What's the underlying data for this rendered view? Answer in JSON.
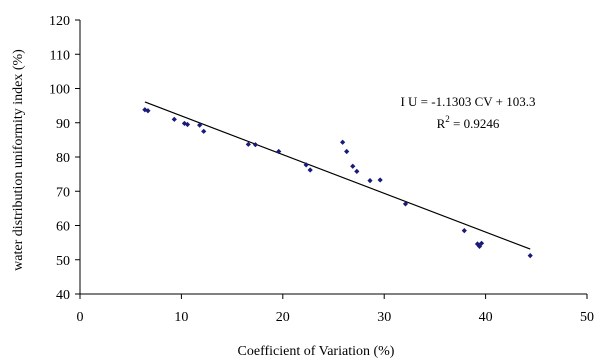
{
  "chart_data": {
    "type": "scatter",
    "title": "",
    "xlabel": "Coefficient of Variation (%)",
    "ylabel": "water distribution uniformity index (%)",
    "xlim": [
      0,
      50
    ],
    "ylim": [
      40,
      120
    ],
    "x_ticks": [
      "0",
      "10",
      "20",
      "30",
      "40",
      "50"
    ],
    "y_ticks": [
      "40",
      "50",
      "60",
      "70",
      "80",
      "90",
      "100",
      "110",
      "120"
    ],
    "grid": false,
    "legend": "none",
    "series": [
      {
        "marker_color": "#1a1a7a",
        "points": [
          {
            "x": 6.4,
            "y": 93.8
          },
          {
            "x": 6.7,
            "y": 93.5
          },
          {
            "x": 9.3,
            "y": 91.0
          },
          {
            "x": 10.3,
            "y": 89.8
          },
          {
            "x": 10.6,
            "y": 89.5
          },
          {
            "x": 11.8,
            "y": 89.3
          },
          {
            "x": 12.2,
            "y": 87.5
          },
          {
            "x": 16.6,
            "y": 83.7
          },
          {
            "x": 17.3,
            "y": 83.6
          },
          {
            "x": 19.6,
            "y": 81.6
          },
          {
            "x": 22.3,
            "y": 77.7
          },
          {
            "x": 22.7,
            "y": 76.2
          },
          {
            "x": 25.9,
            "y": 84.3
          },
          {
            "x": 26.3,
            "y": 81.6
          },
          {
            "x": 26.9,
            "y": 77.3
          },
          {
            "x": 27.3,
            "y": 75.8
          },
          {
            "x": 28.6,
            "y": 73.1
          },
          {
            "x": 29.6,
            "y": 73.3
          },
          {
            "x": 32.1,
            "y": 66.3
          },
          {
            "x": 37.9,
            "y": 58.5
          },
          {
            "x": 39.2,
            "y": 54.6
          },
          {
            "x": 39.4,
            "y": 53.9
          },
          {
            "x": 39.6,
            "y": 54.8
          },
          {
            "x": 44.4,
            "y": 51.2
          }
        ]
      }
    ],
    "trendline": {
      "type": "linear",
      "slope": -1.1303,
      "intercept": 103.3,
      "x_range": [
        6.4,
        44.4
      ],
      "color": "#000000",
      "equation_text": "I U = -1.1303 CV + 103.3",
      "r2_label": "R",
      "r2_sup": "2",
      "r2_value": " = 0.9246"
    }
  }
}
